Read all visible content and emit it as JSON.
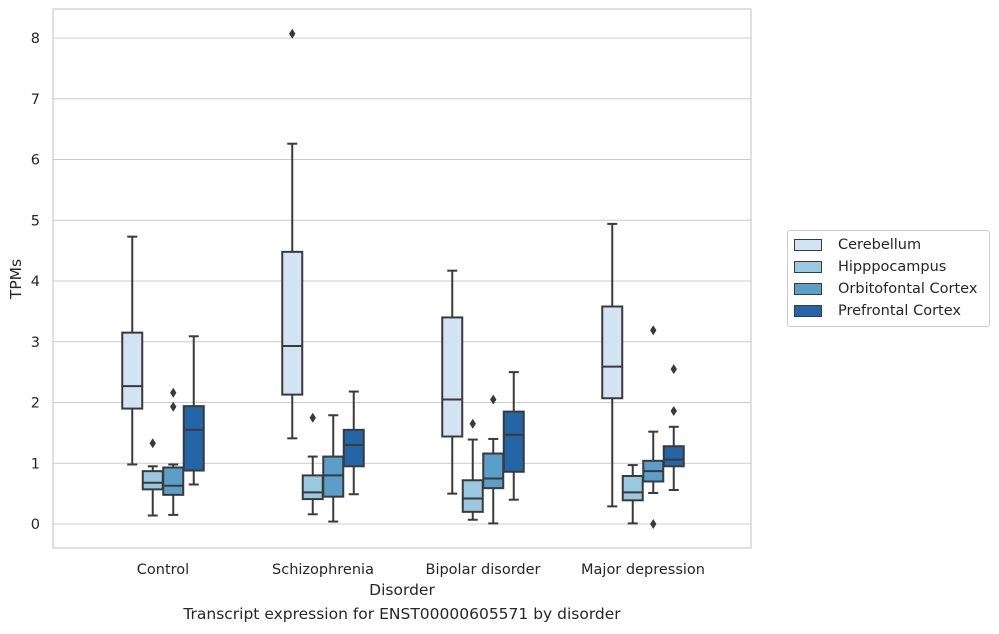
{
  "chart_data": {
    "type": "box",
    "xlabel": "Disorder",
    "ylabel": "TPMs",
    "caption": "Transcript expression for ENST00000605571 by disorder",
    "ylim": [
      -0.4,
      8.5
    ],
    "yticks": [
      0,
      1,
      2,
      3,
      4,
      5,
      6,
      7,
      8
    ],
    "grid": "horizontal",
    "legend_position": "right",
    "categories": [
      "Control",
      "Schizophrenia",
      "Bipolar disorder",
      "Major depression"
    ],
    "series": [
      {
        "name": "Cerebellum",
        "color": "#d2e3f3",
        "boxes": [
          {
            "whislo": 0.98,
            "q1": 1.9,
            "med": 2.27,
            "q3": 3.15,
            "whishi": 4.73,
            "fliers": []
          },
          {
            "whislo": 1.41,
            "q1": 2.13,
            "med": 2.93,
            "q3": 4.48,
            "whishi": 6.26,
            "fliers": [
              8.07
            ]
          },
          {
            "whislo": 0.5,
            "q1": 1.44,
            "med": 2.05,
            "q3": 3.4,
            "whishi": 4.17,
            "fliers": []
          },
          {
            "whislo": 0.29,
            "q1": 2.07,
            "med": 2.59,
            "q3": 3.58,
            "whishi": 4.94,
            "fliers": []
          }
        ]
      },
      {
        "name": "Hipppocampus",
        "color": "#9ac8e0",
        "boxes": [
          {
            "whislo": 0.14,
            "q1": 0.57,
            "med": 0.68,
            "q3": 0.87,
            "whishi": 0.95,
            "fliers": [
              1.33
            ]
          },
          {
            "whislo": 0.16,
            "q1": 0.41,
            "med": 0.52,
            "q3": 0.8,
            "whishi": 1.11,
            "fliers": [
              1.75
            ]
          },
          {
            "whislo": 0.07,
            "q1": 0.2,
            "med": 0.42,
            "q3": 0.72,
            "whishi": 1.39,
            "fliers": [
              1.65
            ]
          },
          {
            "whislo": 0.01,
            "q1": 0.39,
            "med": 0.52,
            "q3": 0.79,
            "whishi": 0.97,
            "fliers": []
          }
        ]
      },
      {
        "name": "Orbitofontal Cortex",
        "color": "#5a9ec9",
        "boxes": [
          {
            "whislo": 0.15,
            "q1": 0.48,
            "med": 0.63,
            "q3": 0.93,
            "whishi": 0.98,
            "fliers": [
              1.93,
              2.16
            ]
          },
          {
            "whislo": 0.04,
            "q1": 0.45,
            "med": 0.8,
            "q3": 1.11,
            "whishi": 1.79,
            "fliers": []
          },
          {
            "whislo": 0.01,
            "q1": 0.59,
            "med": 0.75,
            "q3": 1.16,
            "whishi": 1.4,
            "fliers": [
              2.05
            ]
          },
          {
            "whislo": 0.51,
            "q1": 0.7,
            "med": 0.87,
            "q3": 1.04,
            "whishi": 1.52,
            "fliers": [
              0.0,
              3.19
            ]
          }
        ]
      },
      {
        "name": "Prefrontal Cortex",
        "color": "#2465a8",
        "boxes": [
          {
            "whislo": 0.65,
            "q1": 0.88,
            "med": 1.55,
            "q3": 1.94,
            "whishi": 3.09,
            "fliers": []
          },
          {
            "whislo": 0.49,
            "q1": 0.95,
            "med": 1.3,
            "q3": 1.55,
            "whishi": 2.18,
            "fliers": []
          },
          {
            "whislo": 0.4,
            "q1": 0.86,
            "med": 1.47,
            "q3": 1.85,
            "whishi": 2.5,
            "fliers": []
          },
          {
            "whislo": 0.56,
            "q1": 0.95,
            "med": 1.06,
            "q3": 1.28,
            "whishi": 1.6,
            "fliers": [
              1.86,
              2.55
            ]
          }
        ]
      }
    ]
  }
}
